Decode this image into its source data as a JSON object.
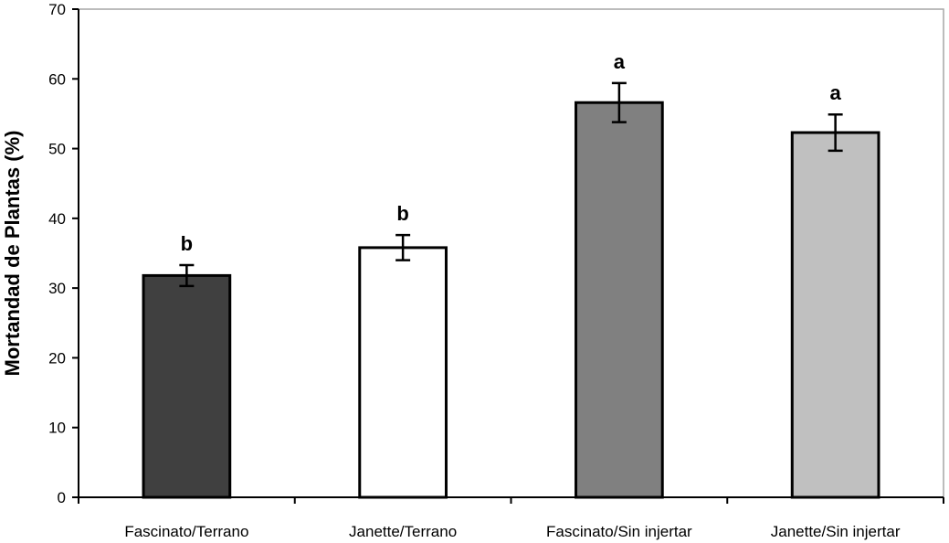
{
  "chart_data": {
    "type": "bar",
    "title": "",
    "xlabel": "",
    "ylabel": "Mortandad de Plantas (%)",
    "ylim": [
      0,
      70
    ],
    "yticks": [
      0,
      10,
      20,
      30,
      40,
      50,
      60,
      70
    ],
    "categories": [
      "Fascinato/Terrano",
      "Janette/Terrano",
      "Fascinato/Sin injertar",
      "Janette/Sin injertar"
    ],
    "values": [
      31.8,
      35.8,
      56.6,
      52.3
    ],
    "errors": [
      1.5,
      1.8,
      2.8,
      2.6
    ],
    "significance_letters": [
      "b",
      "b",
      "a",
      "a"
    ],
    "bar_colors": [
      "#404040",
      "#ffffff",
      "#808080",
      "#c0c0c0"
    ],
    "grid": false,
    "legend": "none"
  }
}
